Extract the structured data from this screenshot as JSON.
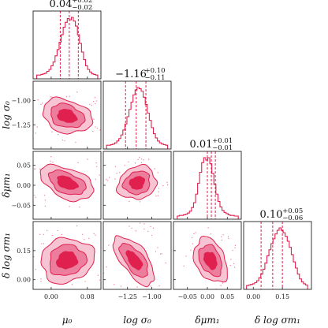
{
  "chart_data": {
    "type": "corner",
    "colors": {
      "line": "#e0204f",
      "fill_outer": "#f6c4d2",
      "fill_mid": "#ec7d9c",
      "fill_inner": "#e0204f",
      "frame": "#222222"
    },
    "params": [
      {
        "axis_label": "μ₀",
        "median": 0.04,
        "lo": 0.02,
        "hi": 0.06,
        "title": "0.04",
        "title_plus": "+0.02",
        "title_minus": "−0.02",
        "range": [
          -0.04,
          0.11
        ],
        "ticks": [
          0.0,
          0.08
        ],
        "tick_labels": [
          "0.00",
          "0.08"
        ]
      },
      {
        "axis_label": "log σ₀",
        "median": -1.16,
        "lo": -1.27,
        "hi": -1.06,
        "title": "−1.16",
        "title_plus": "+0.10",
        "title_minus": "−0.11",
        "range": [
          -1.5,
          -0.8
        ],
        "ticks": [
          -1.25,
          -1.0
        ],
        "tick_labels": [
          "−1.25",
          "−1.00"
        ]
      },
      {
        "axis_label": "δμm₁",
        "median": 0.01,
        "lo": 0.0,
        "hi": 0.02,
        "title": "0.01",
        "title_plus": "+0.01",
        "title_minus": "−0.01",
        "range": [
          -0.085,
          0.085
        ],
        "ticks": [
          -0.05,
          0.0,
          0.05
        ],
        "tick_labels": [
          "−0.05",
          "0.00",
          "0.05"
        ]
      },
      {
        "axis_label": "δ log σm₁",
        "median": 0.1,
        "lo": 0.04,
        "hi": 0.15,
        "title": "0.10",
        "title_plus": "+0.05",
        "title_minus": "−0.06",
        "range": [
          -0.05,
          0.3
        ],
        "ticks": [
          0.0,
          0.15
        ],
        "tick_labels": [
          "0.00",
          "0.15"
        ]
      }
    ],
    "contours": [
      {
        "row": 1,
        "col": 0,
        "center": [
          0.035,
          -1.16
        ],
        "sd": [
          0.026,
          0.085
        ],
        "rho": -0.25
      },
      {
        "row": 2,
        "col": 0,
        "center": [
          0.035,
          0.006
        ],
        "sd": [
          0.028,
          0.021
        ],
        "rho": -0.45
      },
      {
        "row": 2,
        "col": 1,
        "center": [
          -1.15,
          0.006
        ],
        "sd": [
          0.095,
          0.02
        ],
        "rho": 0.15
      },
      {
        "row": 3,
        "col": 0,
        "center": [
          0.035,
          0.1
        ],
        "sd": [
          0.028,
          0.055
        ],
        "rho": 0.1
      },
      {
        "row": 3,
        "col": 1,
        "center": [
          -1.18,
          0.1
        ],
        "sd": [
          0.1,
          0.06
        ],
        "rho": -0.65
      },
      {
        "row": 3,
        "col": 2,
        "center": [
          0.008,
          0.1
        ],
        "sd": [
          0.02,
          0.055
        ],
        "rho": -0.35
      }
    ],
    "histograms": [
      [
        1,
        1,
        2,
        3,
        4,
        7,
        10,
        16,
        22,
        32,
        42,
        54,
        66,
        78,
        86,
        92,
        90,
        94,
        88,
        80,
        66,
        52,
        38,
        26,
        16,
        10,
        6,
        3,
        2,
        1
      ],
      [
        1,
        1,
        2,
        3,
        5,
        8,
        12,
        18,
        26,
        36,
        48,
        60,
        72,
        84,
        92,
        96,
        94,
        90,
        80,
        68,
        54,
        42,
        30,
        20,
        13,
        8,
        5,
        3,
        2,
        1
      ],
      [
        0,
        1,
        1,
        2,
        3,
        5,
        8,
        14,
        22,
        36,
        54,
        72,
        88,
        96,
        92,
        96,
        86,
        70,
        52,
        36,
        24,
        15,
        9,
        6,
        4,
        2,
        1,
        1,
        0,
        0
      ],
      [
        1,
        2,
        3,
        4,
        6,
        9,
        14,
        20,
        28,
        38,
        50,
        60,
        70,
        78,
        86,
        92,
        96,
        92,
        88,
        82,
        74,
        64,
        52,
        40,
        30,
        20,
        12,
        7,
        4,
        2
      ]
    ]
  }
}
